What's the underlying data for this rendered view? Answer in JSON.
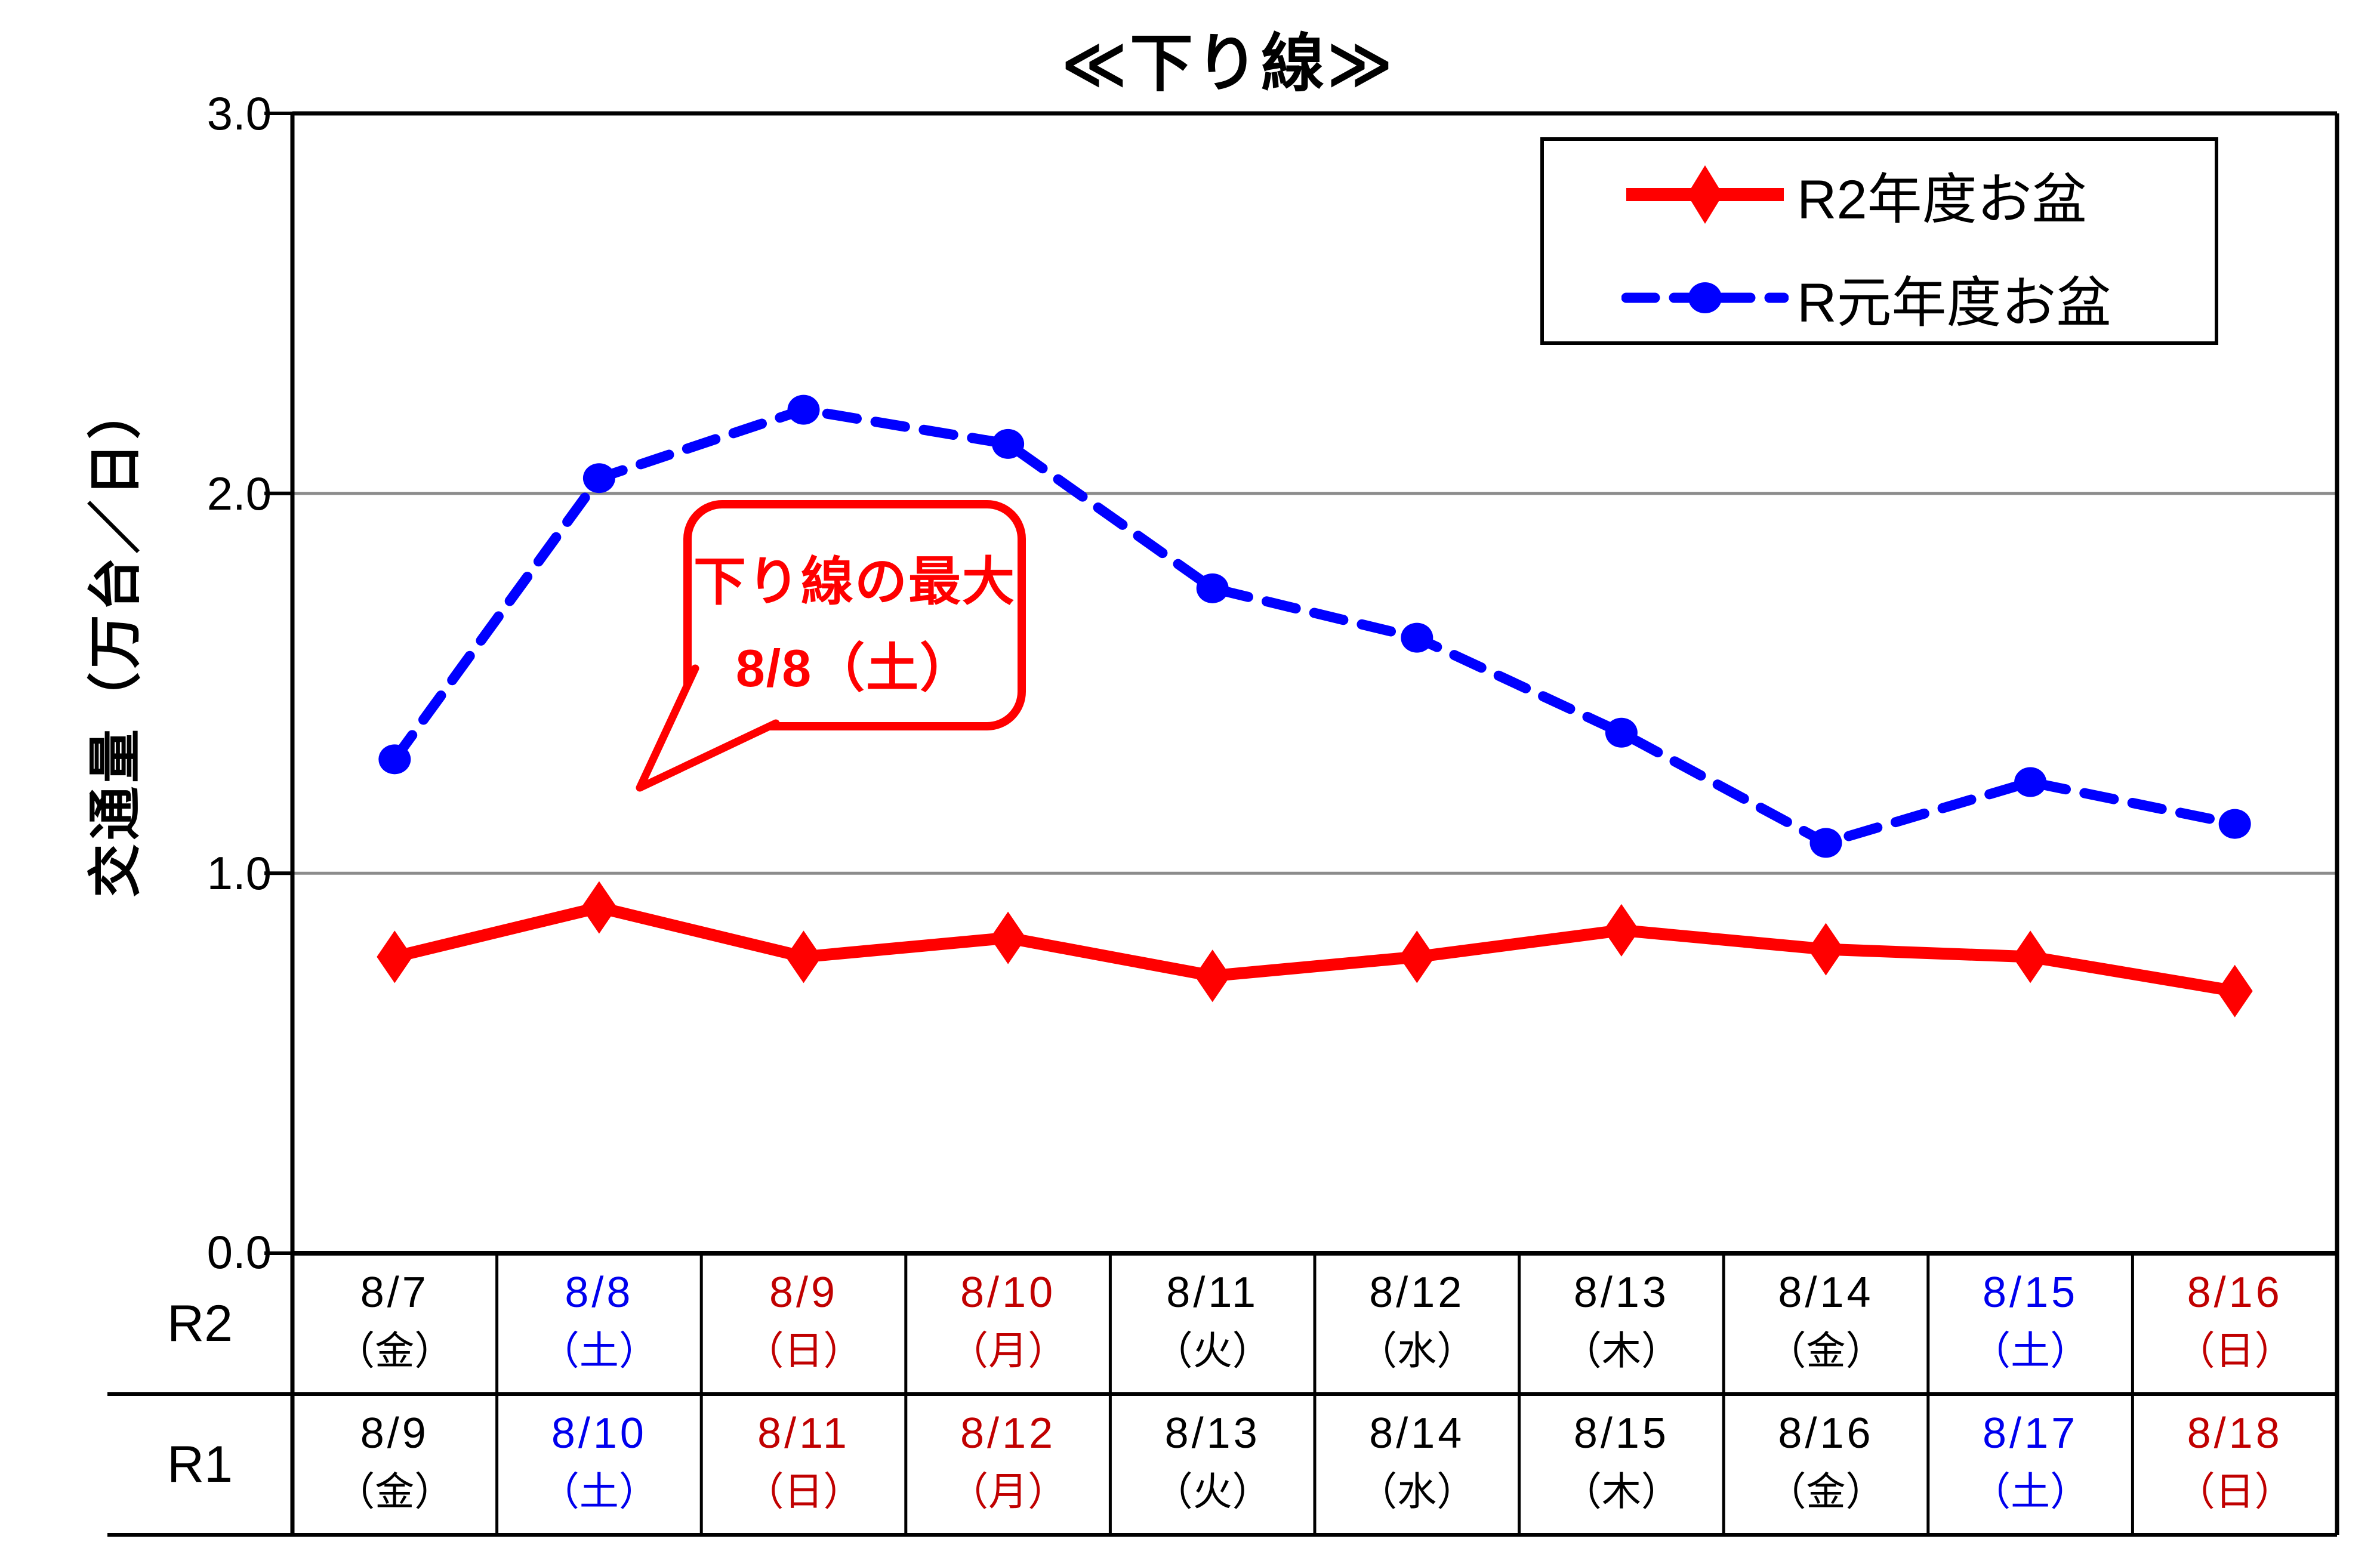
{
  "colors": {
    "r2_series_red": "#FF0000",
    "r1_series_blue": "#0000FF",
    "table_holiday_red": "#C00000",
    "table_saturday_blue": "#0000EE",
    "grid_gray": "#8C8C8C",
    "axis_black": "#000000",
    "callout_red": "#FF0000"
  },
  "chart_data": {
    "type": "line",
    "title": "≪下り線≫",
    "ylabel": "交通量（万台／日）",
    "ylim": [
      0.0,
      3.0
    ],
    "ytick_labels": [
      "3.0",
      "2.0",
      "1.0",
      "0.0"
    ],
    "ytick_values": [
      3.0,
      2.0,
      1.0,
      0.0
    ],
    "gridline_values": [
      2.0,
      1.0
    ],
    "grid": "horizontal-only",
    "legend_position": "top-right",
    "categories_r2": [
      "8/7（金）",
      "8/8（土）",
      "8/9（日）",
      "8/10（月）",
      "8/11（火）",
      "8/12（水）",
      "8/13（木）",
      "8/14（金）",
      "8/15（土）",
      "8/16（日）"
    ],
    "categories_r1": [
      "8/9（金）",
      "8/10（土）",
      "8/11（日）",
      "8/12（月）",
      "8/13（火）",
      "8/14（水）",
      "8/15（木）",
      "8/16（金）",
      "8/17（土）",
      "8/18（日）"
    ],
    "series": [
      {
        "name": "R2年度お盆",
        "color": "#FF0000",
        "line_style": "solid",
        "marker": "diamond",
        "values": [
          0.78,
          0.91,
          0.78,
          0.83,
          0.73,
          0.78,
          0.85,
          0.8,
          0.78,
          0.69
        ]
      },
      {
        "name": "R元年度お盆",
        "color": "#0000FF",
        "line_style": "dashed",
        "marker": "circle",
        "values": [
          1.3,
          2.04,
          2.22,
          2.13,
          1.75,
          1.62,
          1.37,
          1.08,
          1.24,
          1.13
        ]
      }
    ],
    "annotation": {
      "lines": [
        "下り線の最大",
        "8/8（土）"
      ],
      "points_to": "8/8（土）"
    }
  },
  "table": {
    "row_headers": [
      "R2",
      "R1"
    ],
    "columns": [
      {
        "r2_date": "8/7",
        "r2_day": "（金）",
        "r1_date": "8/9",
        "r1_day": "（金）",
        "color": "black"
      },
      {
        "r2_date": "8/8",
        "r2_day": "（土）",
        "r1_date": "8/10",
        "r1_day": "（土）",
        "color": "blue"
      },
      {
        "r2_date": "8/9",
        "r2_day": "（日）",
        "r1_date": "8/11",
        "r1_day": "（日）",
        "color": "red"
      },
      {
        "r2_date": "8/10",
        "r2_day": "（月）",
        "r1_date": "8/12",
        "r1_day": "（月）",
        "color": "red"
      },
      {
        "r2_date": "8/11",
        "r2_day": "（火）",
        "r1_date": "8/13",
        "r1_day": "（火）",
        "color": "black"
      },
      {
        "r2_date": "8/12",
        "r2_day": "（水）",
        "r1_date": "8/14",
        "r1_day": "（水）",
        "color": "black"
      },
      {
        "r2_date": "8/13",
        "r2_day": "（木）",
        "r1_date": "8/15",
        "r1_day": "（木）",
        "color": "black"
      },
      {
        "r2_date": "8/14",
        "r2_day": "（金）",
        "r1_date": "8/16",
        "r1_day": "（金）",
        "color": "black"
      },
      {
        "r2_date": "8/15",
        "r2_day": "（土）",
        "r1_date": "8/17",
        "r1_day": "（土）",
        "color": "blue"
      },
      {
        "r2_date": "8/16",
        "r2_day": "（日）",
        "r1_date": "8/18",
        "r1_day": "（日）",
        "color": "red"
      }
    ]
  }
}
